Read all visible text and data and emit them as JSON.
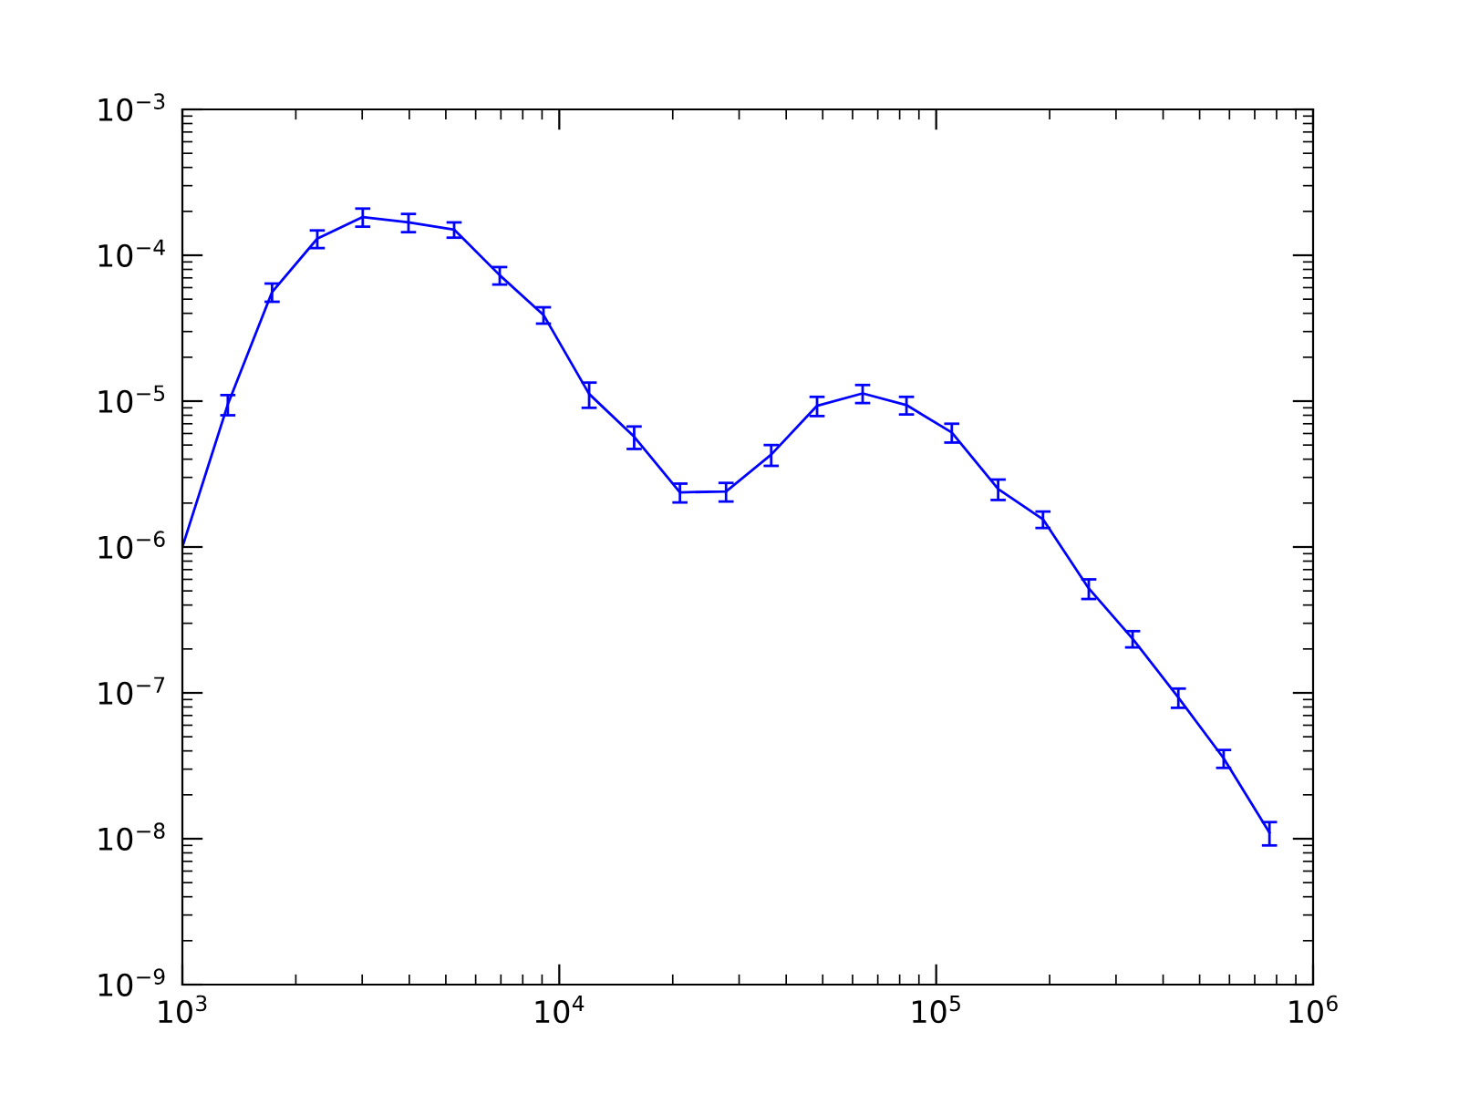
{
  "chart_data": {
    "type": "line",
    "log": "xy",
    "color": "#0000ff",
    "marker": "none",
    "line_style": "solid",
    "grid": false,
    "x": [
      1000,
      1320,
      1730,
      2280,
      3010,
      3980,
      5260,
      6950,
      9080,
      12000,
      15800,
      20900,
      27700,
      36500,
      48300,
      63800,
      83400,
      110000,
      146000,
      192000,
      254000,
      332000,
      439000,
      579000,
      766000
    ],
    "values": [
      1e-06,
      9.5e-06,
      5.6e-05,
      0.00013,
      0.000183,
      0.000168,
      0.00015,
      7.3e-05,
      3.9e-05,
      1.12e-05,
      5.7e-06,
      2.37e-06,
      2.4e-06,
      4.3e-06,
      9.3e-06,
      1.13e-05,
      9.4e-06,
      6.1e-06,
      2.5e-06,
      1.55e-06,
      5.2e-07,
      2.35e-07,
      9.3e-08,
      3.56e-08,
      1.1e-08
    ],
    "errors": [
      null,
      1.5e-06,
      8e-06,
      1.8e-05,
      2.6e-05,
      2.4e-05,
      1.8e-05,
      1e-05,
      5e-06,
      2.2e-06,
      1e-06,
      3.5e-07,
      3.5e-07,
      7e-07,
      1.4e-06,
      1.6e-06,
      1.3e-06,
      9e-07,
      4e-07,
      2e-07,
      8e-08,
      3e-08,
      1.4e-08,
      5e-09,
      2e-09
    ],
    "xlim": [
      1000,
      1000000
    ],
    "ylim": [
      1e-09,
      0.001
    ],
    "xticks": [
      {
        "value": 1000,
        "label": "10$^{3}$"
      },
      {
        "value": 10000,
        "label": "10$^{4}$"
      },
      {
        "value": 100000,
        "label": "10$^{5}$"
      },
      {
        "value": 1000000,
        "label": "10$^{6}$"
      }
    ],
    "yticks": [
      {
        "value": 1e-09,
        "label": "10$^{−9}$"
      },
      {
        "value": 1e-08,
        "label": "10$^{−8}$"
      },
      {
        "value": 1e-07,
        "label": "10$^{−7}$"
      },
      {
        "value": 1e-06,
        "label": "10$^{−6}$"
      },
      {
        "value": 1e-05,
        "label": "10$^{−5}$"
      },
      {
        "value": 0.0001,
        "label": "10$^{−4}$"
      },
      {
        "value": 0.001,
        "label": "10$^{−3}$"
      }
    ]
  }
}
